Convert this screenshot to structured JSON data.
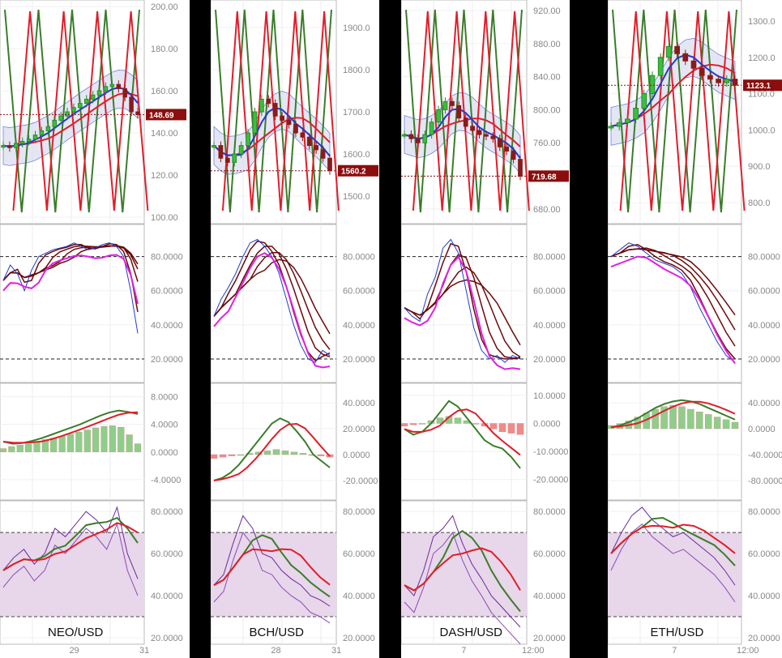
{
  "charts": [
    {
      "pair": "NEO/USD",
      "last_price": "148.69",
      "x_ticks": [
        "29",
        "31"
      ],
      "price_ticks": [
        "100.00",
        "120.00",
        "140.00",
        "160.00",
        "180.00",
        "200.00"
      ],
      "stoch_ticks": [
        "20.0000",
        "40.0000",
        "60.0000",
        "80.0000"
      ],
      "macd_ticks": [
        "-4.0000",
        "0.0000",
        "4.0000",
        "8.0000"
      ],
      "rsi_ticks": [
        "20.0000",
        "40.0000",
        "60.0000",
        "80.0000"
      ]
    },
    {
      "pair": "BCH/USD",
      "last_price": "1560.2",
      "x_ticks": [
        "28",
        "31"
      ],
      "price_ticks": [
        "1500.0",
        "1600.0",
        "1700.0",
        "1800.0",
        "1900.0"
      ],
      "stoch_ticks": [
        "20.0000",
        "40.0000",
        "60.0000",
        "80.0000"
      ],
      "macd_ticks": [
        "-20.0000",
        "0.0000",
        "20.0000",
        "40.0000"
      ],
      "rsi_ticks": [
        "20.0000",
        "40.0000",
        "60.0000",
        "80.0000"
      ]
    },
    {
      "pair": "DASH/USD",
      "last_price": "719.68",
      "x_ticks": [
        "7",
        "12:00"
      ],
      "price_ticks": [
        "680.00",
        "720.00",
        "760.00",
        "800.00",
        "840.00",
        "880.00",
        "920.00"
      ],
      "stoch_ticks": [
        "20.0000",
        "40.0000",
        "60.0000",
        "80.0000"
      ],
      "macd_ticks": [
        "-20.0000",
        "-10.0000",
        "0.0000",
        "10.0000"
      ],
      "rsi_ticks": [
        "20.0000",
        "40.0000",
        "60.0000",
        "80.0000"
      ]
    },
    {
      "pair": "ETH/USD",
      "last_price": "1123.1",
      "x_ticks": [
        "7",
        "12:00"
      ],
      "price_ticks": [
        "800.0",
        "900.0",
        "1000.0",
        "1100.0",
        "1200.0",
        "1300.0"
      ],
      "stoch_ticks": [
        "20.0000",
        "40.0000",
        "60.0000",
        "80.0000"
      ],
      "macd_ticks": [
        "-80.0000",
        "-40.0000",
        "0.0000",
        "40.0000"
      ],
      "rsi_ticks": [
        "20.0000",
        "40.0000",
        "60.0000",
        "80.0000"
      ]
    }
  ],
  "colors": {
    "bull": "#3cbf3c",
    "bear": "#8b1a1a",
    "ma_red": "#e01e2a",
    "ma_blue": "#1f3ad6",
    "ma_green": "#3a7d2a",
    "band_fill": "#d9dcf0",
    "stoch_pink": "#e020e0",
    "stoch_dark": "#6b0a0a",
    "macd_fill": "#f5b54a",
    "rsi_fill": "#e8d6ea",
    "rsi_purple": "#6a2a9a",
    "badge": "#8b0d0d"
  },
  "chart_data": [
    {
      "type": "line",
      "title": "NEO/USD",
      "panels": {
        "price": {
          "ylim": [
            100,
            200
          ],
          "last": 148.69,
          "close": [
            134,
            133,
            135,
            136,
            137,
            139,
            141,
            143,
            146,
            148,
            150,
            152,
            154,
            156,
            158,
            160,
            162,
            163,
            161,
            157,
            150,
            148.69
          ]
        },
        "stochastic": {
          "ylim": [
            10,
            95
          ],
          "levels": [
            20,
            80
          ],
          "k": [
            66,
            75,
            70,
            60,
            72,
            80,
            82,
            84,
            85,
            86,
            88,
            86,
            84,
            85,
            87,
            88,
            86,
            80,
            60,
            35
          ]
        },
        "macd": {
          "ylim": [
            -6,
            9
          ],
          "histogram": [
            0.5,
            0.8,
            1,
            1.2,
            1.5,
            1.8,
            2,
            2.3,
            2.6,
            2.9,
            3.2,
            3.5,
            3.7,
            3.8,
            3.6,
            2.5,
            1.2
          ],
          "signal": [
            1.5,
            1.2,
            1.3,
            1.6,
            2,
            2.5,
            3,
            3.5,
            4,
            4.6,
            5.2,
            5.7,
            6,
            5.8,
            5.5
          ]
        },
        "rsi": {
          "ylim": [
            20,
            82
          ],
          "levels": [
            30,
            70
          ],
          "rsi": [
            52,
            58,
            62,
            55,
            60,
            72,
            68,
            74,
            80,
            76,
            70,
            82,
            60,
            48
          ]
        }
      }
    },
    {
      "type": "line",
      "title": "BCH/USD",
      "panels": {
        "price": {
          "ylim": [
            1450,
            1950
          ],
          "last": 1560.2,
          "close": [
            1620,
            1590,
            1580,
            1600,
            1620,
            1650,
            1700,
            1730,
            1720,
            1690,
            1680,
            1670,
            1650,
            1640,
            1620,
            1610,
            1590,
            1560.2
          ]
        },
        "stochastic": {
          "ylim": [
            10,
            95
          ],
          "levels": [
            20,
            80
          ],
          "k": [
            45,
            55,
            62,
            70,
            80,
            88,
            90,
            86,
            80,
            70,
            55,
            40,
            28,
            20,
            18,
            25,
            22
          ]
        },
        "macd": {
          "ylim": [
            -30,
            50
          ],
          "histogram": [
            -3,
            -2,
            -1,
            0,
            1,
            2,
            3,
            4,
            3,
            2,
            1,
            0,
            -1,
            -2
          ],
          "signal": [
            -20,
            -18,
            -14,
            -8,
            0,
            8,
            16,
            24,
            28,
            25,
            18,
            10,
            0,
            -5,
            -10
          ]
        },
        "rsi": {
          "ylim": [
            20,
            82
          ],
          "levels": [
            30,
            70
          ],
          "rsi": [
            45,
            50,
            65,
            78,
            72,
            60,
            58,
            52,
            48,
            45,
            40,
            38,
            35
          ]
        }
      }
    },
    {
      "type": "line",
      "title": "DASH/USD",
      "panels": {
        "price": {
          "ylim": [
            670,
            925
          ],
          "last": 719.68,
          "close": [
            770,
            765,
            760,
            770,
            785,
            800,
            810,
            805,
            790,
            780,
            775,
            770,
            768,
            765,
            755,
            750,
            740,
            719.68
          ]
        },
        "stochastic": {
          "ylim": [
            10,
            95
          ],
          "levels": [
            20,
            80
          ],
          "k": [
            50,
            45,
            42,
            58,
            68,
            85,
            90,
            82,
            60,
            38,
            25,
            20,
            22,
            18,
            22,
            20
          ]
        },
        "macd": {
          "ylim": [
            -25,
            12
          ],
          "histogram": [
            -1,
            -0.5,
            0,
            1,
            2,
            2.5,
            2,
            1,
            0,
            -1,
            -2,
            -3,
            -3.5,
            -4
          ],
          "signal": [
            -2,
            -4,
            -3,
            0,
            4,
            8,
            6,
            2,
            -2,
            -6,
            -8,
            -9,
            -12,
            -16
          ]
        },
        "rsi": {
          "ylim": [
            20,
            82
          ],
          "levels": [
            30,
            70
          ],
          "rsi": [
            45,
            40,
            52,
            68,
            72,
            78,
            65,
            55,
            48,
            40,
            35,
            30,
            25
          ]
        }
      }
    },
    {
      "type": "line",
      "title": "ETH/USD",
      "panels": {
        "price": {
          "ylim": [
            760,
            1340
          ],
          "last": 1123.1,
          "close": [
            1010,
            1020,
            1030,
            1060,
            1100,
            1150,
            1200,
            1230,
            1210,
            1190,
            1170,
            1150,
            1140,
            1130,
            1140,
            1123.1
          ]
        },
        "stochastic": {
          "ylim": [
            10,
            95
          ],
          "levels": [
            20,
            80
          ],
          "k": [
            80,
            84,
            88,
            86,
            82,
            78,
            76,
            74,
            70,
            62,
            50,
            40,
            30,
            22,
            18
          ]
        },
        "macd": {
          "ylim": [
            -100,
            60
          ],
          "histogram": [
            5,
            8,
            12,
            18,
            24,
            30,
            34,
            36,
            34,
            30,
            26,
            22,
            18,
            14,
            10
          ],
          "signal": [
            2,
            5,
            10,
            16,
            24,
            32,
            38,
            42,
            44,
            42,
            38,
            32,
            26,
            20,
            14
          ]
        },
        "rsi": {
          "ylim": [
            20,
            82
          ],
          "levels": [
            30,
            70
          ],
          "rsi": [
            60,
            70,
            78,
            82,
            76,
            72,
            68,
            70,
            66,
            62,
            58,
            52,
            45
          ]
        }
      }
    }
  ]
}
